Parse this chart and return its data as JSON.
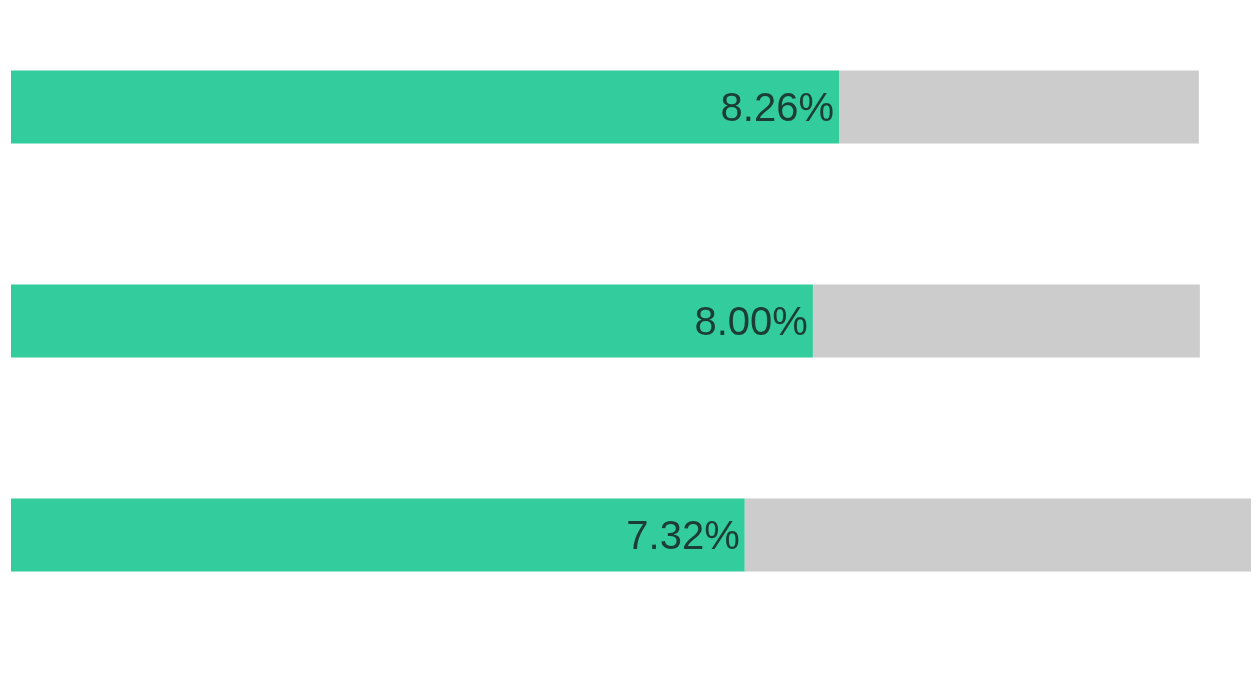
{
  "chart_data": {
    "type": "bar",
    "orientation": "horizontal",
    "stacked": true,
    "categories": [
      null,
      null,
      null
    ],
    "xlim": [
      0,
      12.43
    ],
    "series": [
      {
        "color": "#33cc9c",
        "values": [
          8.26,
          8.0,
          7.32
        ],
        "value_labels": [
          "8.26%",
          "8.00%",
          "7.32%"
        ]
      },
      {
        "color": "#cccccc",
        "values": [
          3.59,
          3.86,
          5.05
        ]
      }
    ]
  }
}
